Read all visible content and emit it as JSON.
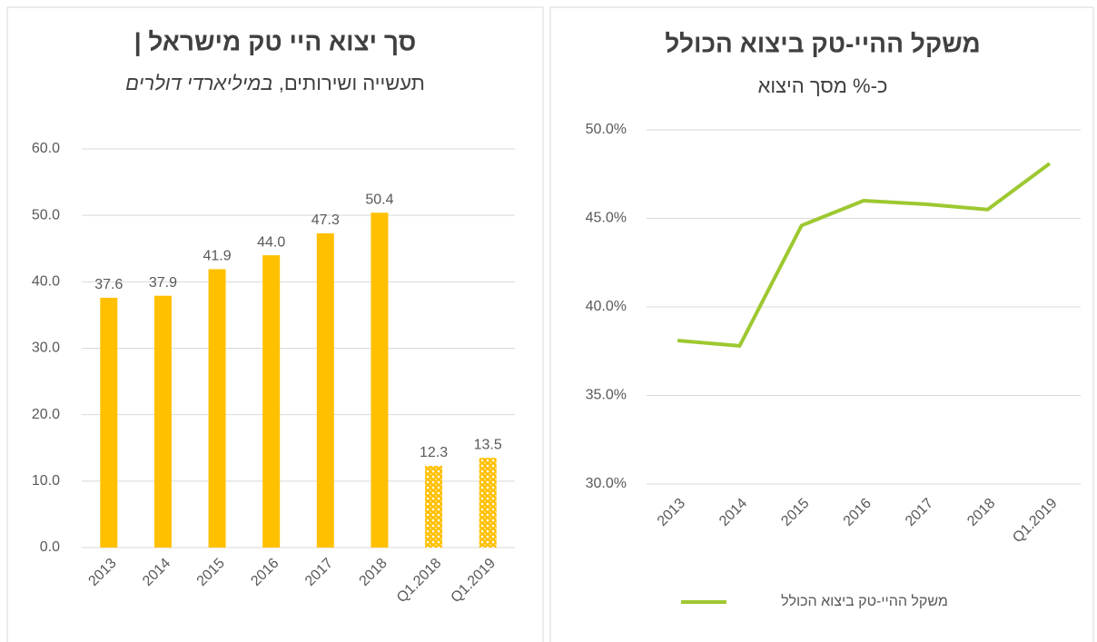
{
  "chart_data": [
    {
      "type": "bar",
      "title": "סך יצוא היי טק מישראל |",
      "subtitle": "תעשייה ושירותים,",
      "subtitle_italic": "במיליארדי דולרים",
      "categories": [
        "2013",
        "2014",
        "2015",
        "2016",
        "2017",
        "2018",
        "Q1.2018",
        "Q1.2019"
      ],
      "values": [
        37.6,
        37.9,
        41.9,
        44.0,
        47.3,
        50.4,
        12.3,
        13.5
      ],
      "value_labels": [
        "37.6",
        "37.9",
        "41.9",
        "44.0",
        "47.3",
        "50.4",
        "12.3",
        "13.5"
      ],
      "patterned": [
        false,
        false,
        false,
        false,
        false,
        false,
        true,
        true
      ],
      "color": "#ffc000",
      "ylim": [
        0,
        60
      ],
      "yticks": [
        {
          "value": 0,
          "label": "0.0"
        },
        {
          "value": 10,
          "label": "10.0"
        },
        {
          "value": 20,
          "label": "20.0"
        },
        {
          "value": 30,
          "label": "30.0"
        },
        {
          "value": 40,
          "label": "40.0"
        },
        {
          "value": 50,
          "label": "50.0"
        },
        {
          "value": 60,
          "label": "60.0"
        }
      ],
      "grid": true
    },
    {
      "type": "line",
      "title": "משקל ההיי-טק ביצוא הכולל",
      "subtitle": "כ-% מסך היצוא",
      "categories": [
        "2013",
        "2014",
        "2015",
        "2016",
        "2017",
        "2018",
        "Q1.2019"
      ],
      "series": [
        {
          "name": "משקל ההיי-טק ביצוא הכולל",
          "color": "#9dc830",
          "values": [
            38.1,
            37.8,
            44.6,
            46.0,
            45.8,
            45.5,
            48.1
          ]
        }
      ],
      "ylim": [
        30,
        50
      ],
      "yticks": [
        {
          "value": 30,
          "label": "30.0%"
        },
        {
          "value": 35,
          "label": "35.0%"
        },
        {
          "value": 40,
          "label": "40.0%"
        },
        {
          "value": 45,
          "label": "45.0%"
        },
        {
          "value": 50,
          "label": "50.0%"
        }
      ],
      "grid": true,
      "legend": "bottom"
    }
  ]
}
